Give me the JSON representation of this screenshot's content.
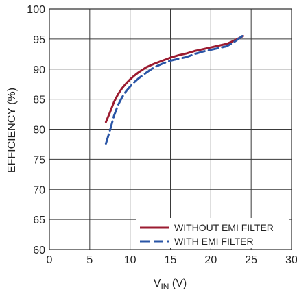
{
  "chart_data": {
    "type": "line",
    "xlabel_main": "V",
    "xlabel_sub": "IN",
    "xlabel_unit": " (V)",
    "ylabel": "EFFICIENCY (%)",
    "xlim": [
      0,
      30
    ],
    "ylim": [
      60,
      100
    ],
    "xticks": [
      0,
      5,
      10,
      15,
      20,
      25,
      30
    ],
    "yticks": [
      60,
      65,
      70,
      75,
      80,
      85,
      90,
      95,
      100
    ],
    "grid": true,
    "legend_placement": "bottom-right",
    "series": [
      {
        "name": "WITHOUT EMI FILTER",
        "color": "#9b1b30",
        "dash": "solid",
        "x": [
          7,
          7.5,
          8,
          8.5,
          9,
          9.5,
          10,
          10.5,
          11,
          12,
          13,
          14,
          15,
          16,
          17,
          18,
          19,
          20,
          21,
          22,
          23,
          24
        ],
        "y": [
          81.2,
          82.8,
          84.5,
          85.8,
          86.8,
          87.6,
          88.3,
          88.9,
          89.4,
          90.3,
          90.9,
          91.4,
          91.9,
          92.3,
          92.6,
          93.0,
          93.3,
          93.6,
          93.9,
          94.2,
          94.8,
          95.5
        ]
      },
      {
        "name": "WITH EMI FILTER",
        "color": "#2a55a6",
        "dash": "dashed",
        "x": [
          7,
          7.5,
          8,
          8.5,
          9,
          9.5,
          10,
          10.5,
          11,
          12,
          13,
          14,
          15,
          16,
          17,
          18,
          19,
          20,
          21,
          22,
          23,
          24
        ],
        "y": [
          77.6,
          79.8,
          82.2,
          84.0,
          85.3,
          86.3,
          87.1,
          87.8,
          88.4,
          89.4,
          90.3,
          90.9,
          91.4,
          91.7,
          92.0,
          92.5,
          92.9,
          93.2,
          93.5,
          93.8,
          94.6,
          95.6
        ]
      }
    ]
  }
}
